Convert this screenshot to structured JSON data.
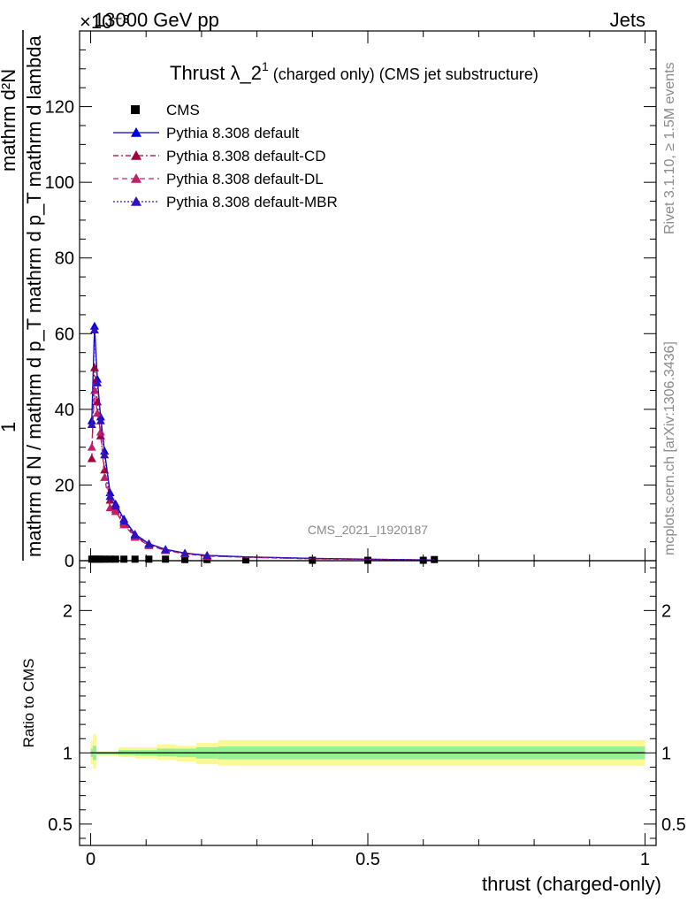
{
  "header": {
    "energy": "13000 GeV pp",
    "process": "Jets",
    "exponent": "×10⁻³"
  },
  "main_title": {
    "prefix": "Thrust λ_2",
    "sup": "1",
    "rest": " (charged only) (CMS jet substructure)"
  },
  "ylabel_lines": [
    "1",
    "mathrm d N / mathrm d p_T mathrm d p_T mathrm d lambda",
    "mathrm d²N"
  ],
  "ratio_ylabel": "Ratio to CMS",
  "xlabel": "thrust (charged-only)",
  "analysis_tag": "CMS_2021_I1920187",
  "side_text_top": "Rivet 3.1.10, ≥ 1.5M events",
  "side_text_bottom": "mcplots.cern.ch [arXiv:1306.3436]",
  "legend": [
    {
      "label": "CMS"
    },
    {
      "label": "Pythia 8.308 default"
    },
    {
      "label": "Pythia 8.308 default-CD"
    },
    {
      "label": "Pythia 8.308 default-DL"
    },
    {
      "label": "Pythia 8.308 default-MBR"
    }
  ],
  "chart_data": [
    {
      "type": "line",
      "panel": "main",
      "xlim": [
        -0.02,
        1.02
      ],
      "ylim": [
        0,
        140
      ],
      "y_unit_multiplier": "10^-3",
      "x_ticks": [
        0,
        0.5,
        1
      ],
      "y_ticks": [
        0,
        20,
        40,
        60,
        80,
        100,
        120
      ],
      "x": [
        0.002,
        0.007,
        0.012,
        0.018,
        0.025,
        0.035,
        0.045,
        0.06,
        0.08,
        0.105,
        0.135,
        0.17,
        0.21,
        0.28,
        0.4,
        0.5,
        0.6,
        0.62
      ],
      "series": [
        {
          "name": "CMS",
          "style": "markers",
          "color": "#000000",
          "values": [
            0.4,
            0.4,
            0.4,
            0.4,
            0.4,
            0.4,
            0.4,
            0.4,
            0.4,
            0.4,
            0.4,
            0.3,
            0.3,
            0.2,
            0.1,
            0.1,
            0.1,
            0.3
          ]
        },
        {
          "name": "Pythia 8.308 default",
          "style": "solid",
          "color": "#0000dd",
          "values": [
            37,
            62,
            48,
            38,
            29,
            18,
            15,
            11,
            7,
            4.5,
            3,
            2,
            1.4,
            1,
            0.6,
            0.4,
            0.2,
            0.2
          ]
        },
        {
          "name": "Pythia 8.308 default-CD",
          "style": "dashdot",
          "color": "#a0003c",
          "values": [
            27,
            51,
            42,
            33,
            24,
            16,
            13.5,
            10,
            6.5,
            4.2,
            2.8,
            1.9,
            1.3,
            0.9,
            0.5,
            0.35,
            0.2,
            0.2
          ]
        },
        {
          "name": "Pythia 8.308 default-DL",
          "style": "dashed",
          "color": "#c0206a",
          "values": [
            30,
            45,
            39,
            34,
            22,
            14,
            13,
            9.5,
            6.2,
            4,
            2.7,
            1.8,
            1.2,
            0.9,
            0.5,
            0.35,
            0.2,
            0.2
          ]
        },
        {
          "name": "Pythia 8.308 default-MBR",
          "style": "dotted",
          "color": "#3010c0",
          "values": [
            36,
            61,
            47,
            37,
            28,
            17,
            14.5,
            10.5,
            6.8,
            4.4,
            2.9,
            2,
            1.4,
            1,
            0.6,
            0.4,
            0.2,
            0.2
          ]
        }
      ]
    },
    {
      "type": "area",
      "panel": "ratio",
      "xlim": [
        -0.02,
        1.02
      ],
      "ylim": [
        0.35,
        2.35
      ],
      "x_ticks": [
        0,
        0.5,
        1
      ],
      "x_tick_labels": [
        "0",
        "0.5",
        "1"
      ],
      "y_ticks": [
        0.5,
        1,
        2
      ],
      "y_tick_labels": [
        "0.5",
        "1",
        "2"
      ],
      "reference_line": 1,
      "bands": [
        {
          "x0": 0.0,
          "x1": 0.004,
          "y_lo": 0.92,
          "y_hi": 1.08,
          "stat_lo": 0.97,
          "stat_hi": 1.03
        },
        {
          "x0": 0.004,
          "x1": 0.01,
          "y_lo": 0.89,
          "y_hi": 1.13,
          "stat_lo": 0.95,
          "stat_hi": 1.05
        },
        {
          "x0": 0.01,
          "x1": 0.05,
          "y_lo": 0.98,
          "y_hi": 1.01,
          "stat_lo": 0.99,
          "stat_hi": 1.005
        },
        {
          "x0": 0.05,
          "x1": 0.08,
          "y_lo": 0.97,
          "y_hi": 1.04,
          "stat_lo": 0.985,
          "stat_hi": 1.02
        },
        {
          "x0": 0.08,
          "x1": 0.12,
          "y_lo": 0.96,
          "y_hi": 1.04,
          "stat_lo": 0.98,
          "stat_hi": 1.02
        },
        {
          "x0": 0.12,
          "x1": 0.155,
          "y_lo": 0.95,
          "y_hi": 1.06,
          "stat_lo": 0.975,
          "stat_hi": 1.03
        },
        {
          "x0": 0.155,
          "x1": 0.19,
          "y_lo": 0.94,
          "y_hi": 1.05,
          "stat_lo": 0.97,
          "stat_hi": 1.03
        },
        {
          "x0": 0.19,
          "x1": 0.23,
          "y_lo": 0.92,
          "y_hi": 1.07,
          "stat_lo": 0.96,
          "stat_hi": 1.04
        },
        {
          "x0": 0.23,
          "x1": 1.0,
          "y_lo": 0.91,
          "y_hi": 1.09,
          "stat_lo": 0.955,
          "stat_hi": 1.045
        }
      ]
    }
  ],
  "colors": {
    "band_outer": "#fcf896",
    "band_inner": "#96f096",
    "grey_text": "#8a8a8a"
  }
}
